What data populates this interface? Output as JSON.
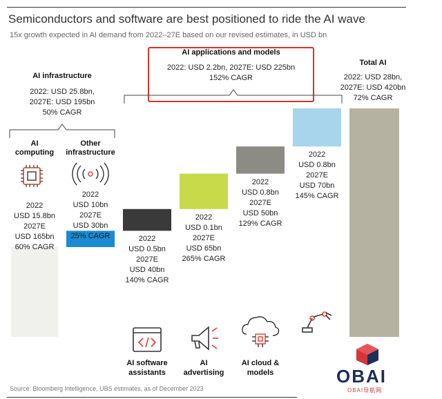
{
  "header": {
    "title": "Semiconductors and software are best positioned to ride the AI wave",
    "subtitle": "15x growth expected in AI demand from 2022–27E based on our revised estimates, in USD bn"
  },
  "groups": {
    "infra": {
      "title": "AI infrastructure",
      "summary": "2022: USD 25.8bn,\n2027E: USD 195bn\n50% CAGR"
    },
    "apps": {
      "title": "AI applications and models",
      "summary": "2022: USD 2.2bn, 2027E: USD 225bn\n152% CAGR"
    },
    "total": {
      "title": "Total AI",
      "summary": "2022: USD 28bn,\n2027E: USD 420bn\n72% CAGR"
    }
  },
  "chart_data": {
    "type": "bar",
    "title": "Semiconductors and software are best positioned to ride the AI wave",
    "subtitle": "15x growth expected in AI demand from 2022–27E based on our revised estimates, in USD bn",
    "categories": [
      "AI computing",
      "Other infrastructure",
      "AI software assistants",
      "AI advertising",
      "AI cloud & models",
      "",
      "Total AI"
    ],
    "series": [
      {
        "name": "2022",
        "values": [
          15.8,
          10,
          0.5,
          0.1,
          0.8,
          0.8,
          28
        ]
      },
      {
        "name": "2027E",
        "values": [
          165,
          30,
          40,
          65,
          50,
          70,
          420
        ]
      }
    ],
    "cagr": [
      "60% CAGR",
      "25% CAGR",
      "140% CAGR",
      "265% CAGR",
      "129% CAGR",
      "145% CAGR",
      "72% CAGR"
    ],
    "bars": [
      {
        "label": "AI\ncomputing",
        "label_pos": "top",
        "icon": "chip-icon",
        "text": "2022\nUSD 15.8bn\n2027E\nUSD 165bn\n60% CAGR",
        "color": "#f0f0ed",
        "base": 0,
        "value": 165
      },
      {
        "label": "Other\ninfrastructure",
        "label_pos": "top",
        "icon": "wireless-signal-icon",
        "text": "2022\nUSD 10bn\n2027E\nUSD 30bn\n25% CAGR",
        "color": "#1b8ad0",
        "base": 165,
        "value": 30
      },
      {
        "label": "AI software\nassistants",
        "label_pos": "bottom",
        "icon": "code-window-icon",
        "text": "2022\nUSD 0.5bn\n2027E\nUSD 40bn\n140% CAGR",
        "color": "#3a3a3a",
        "base": 195,
        "value": 40
      },
      {
        "label": "AI\nadvertising",
        "label_pos": "bottom",
        "icon": "megaphone-icon",
        "text": "2022\nUSD 0.1bn\n2027E\nUSD 65bn\n265% CAGR",
        "color": "#c8d94a",
        "base": 235,
        "value": 65
      },
      {
        "label": "AI cloud &\nmodels",
        "label_pos": "bottom",
        "icon": "cloud-chip-icon",
        "text": "2022\nUSD 0.8bn\n2027E\nUSD 50bn\n129% CAGR",
        "color": "#8c8b84",
        "base": 300,
        "value": 50
      },
      {
        "label": "",
        "label_pos": "bottom",
        "icon": "robot-arm-icon",
        "text": "2022\nUSD 0.8bn\n2027E\nUSD 70bn\n145% CAGR",
        "color": "#a8d4ec",
        "base": 350,
        "value": 70
      },
      {
        "label": "",
        "label_pos": "none",
        "icon": "",
        "text": "",
        "color": "#b6b2a1",
        "base": 0,
        "value": 420
      }
    ],
    "ylim": [
      0,
      420
    ]
  },
  "footer": {
    "source": "Source: Bloomberg Intelligence, UBS estimates, as of December 2023"
  },
  "watermark": {
    "logo_text": "OBAI",
    "sub_text": "OBAI导航网"
  }
}
